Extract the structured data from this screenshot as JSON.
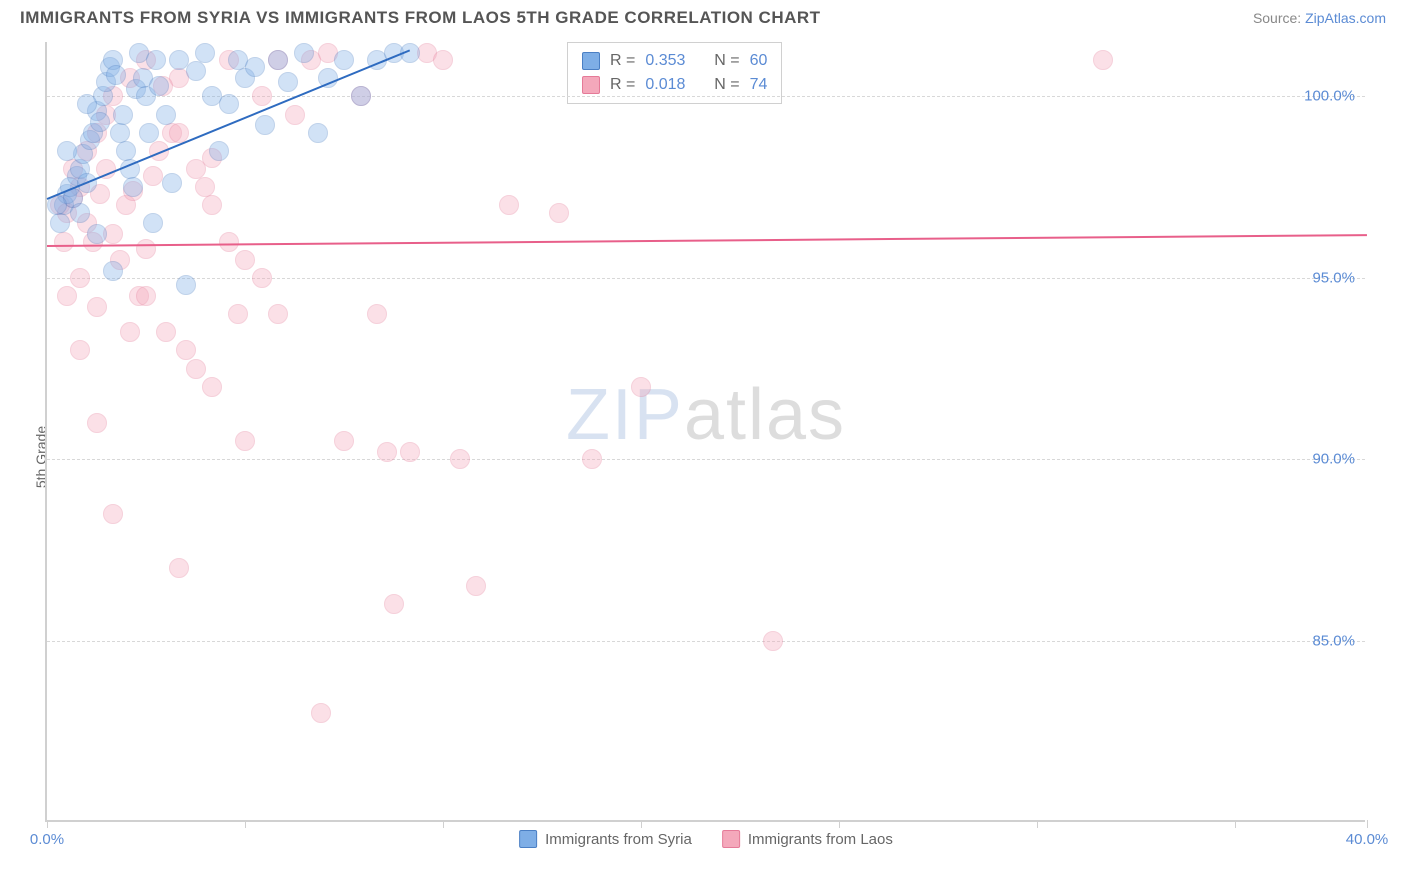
{
  "title": "IMMIGRANTS FROM SYRIA VS IMMIGRANTS FROM LAOS 5TH GRADE CORRELATION CHART",
  "source_prefix": "Source: ",
  "source_link": "ZipAtlas.com",
  "ylabel": "5th Grade",
  "watermark": {
    "part1": "ZIP",
    "part2": "atlas"
  },
  "chart": {
    "type": "scatter",
    "background_color": "#ffffff",
    "grid_color": "#d8d8d8",
    "axis_color": "#d0d0d0",
    "label_color": "#5b8bd4",
    "xlim": [
      0,
      40
    ],
    "ylim": [
      80,
      101.5
    ],
    "xticks": [
      0,
      6,
      12,
      18,
      24,
      30,
      36,
      40
    ],
    "xtick_labels": {
      "0": "0.0%",
      "40": "40.0%"
    },
    "yticks": [
      85,
      90,
      95,
      100
    ],
    "ytick_labels": {
      "85": "85.0%",
      "90": "90.0%",
      "95": "95.0%",
      "100": "100.0%"
    },
    "point_radius": 10,
    "point_opacity": 0.35,
    "series": [
      {
        "name": "Immigrants from Syria",
        "color_fill": "#7eaee6",
        "color_stroke": "#4a7fc4",
        "R": "0.353",
        "N": "60",
        "trend": {
          "x1": 0,
          "y1": 97.2,
          "x2": 11,
          "y2": 101.3,
          "color": "#2e6bc0"
        },
        "points": [
          [
            0.5,
            97.0
          ],
          [
            0.6,
            97.3
          ],
          [
            0.7,
            97.5
          ],
          [
            0.8,
            97.2
          ],
          [
            0.9,
            97.8
          ],
          [
            1.0,
            98.0
          ],
          [
            1.1,
            98.4
          ],
          [
            1.2,
            97.6
          ],
          [
            1.3,
            98.8
          ],
          [
            1.4,
            99.0
          ],
          [
            1.5,
            99.6
          ],
          [
            1.6,
            99.3
          ],
          [
            1.7,
            100.0
          ],
          [
            1.8,
            100.4
          ],
          [
            1.9,
            100.8
          ],
          [
            2.0,
            101.0
          ],
          [
            2.1,
            100.6
          ],
          [
            2.2,
            99.0
          ],
          [
            2.3,
            99.5
          ],
          [
            2.4,
            98.5
          ],
          [
            2.5,
            98.0
          ],
          [
            2.6,
            97.5
          ],
          [
            2.7,
            100.2
          ],
          [
            2.8,
            101.2
          ],
          [
            2.9,
            100.5
          ],
          [
            3.0,
            100.0
          ],
          [
            3.1,
            99.0
          ],
          [
            3.2,
            96.5
          ],
          [
            3.3,
            101.0
          ],
          [
            3.4,
            100.3
          ],
          [
            3.6,
            99.5
          ],
          [
            3.8,
            97.6
          ],
          [
            4.0,
            101.0
          ],
          [
            4.2,
            94.8
          ],
          [
            4.5,
            100.7
          ],
          [
            4.8,
            101.2
          ],
          [
            5.0,
            100.0
          ],
          [
            5.2,
            98.5
          ],
          [
            5.5,
            99.8
          ],
          [
            5.8,
            101.0
          ],
          [
            6.0,
            100.5
          ],
          [
            6.3,
            100.8
          ],
          [
            6.6,
            99.2
          ],
          [
            7.0,
            101.0
          ],
          [
            7.3,
            100.4
          ],
          [
            7.8,
            101.2
          ],
          [
            8.2,
            99.0
          ],
          [
            8.5,
            100.5
          ],
          [
            9.0,
            101.0
          ],
          [
            9.5,
            100.0
          ],
          [
            10.0,
            101.0
          ],
          [
            10.5,
            101.2
          ],
          [
            11.0,
            101.2
          ],
          [
            2.0,
            95.2
          ],
          [
            1.0,
            96.8
          ],
          [
            1.5,
            96.2
          ],
          [
            0.4,
            96.5
          ],
          [
            0.3,
            97.0
          ],
          [
            0.6,
            98.5
          ],
          [
            1.2,
            99.8
          ]
        ]
      },
      {
        "name": "Immigrants from Laos",
        "color_fill": "#f4a8bb",
        "color_stroke": "#e57a98",
        "R": "0.018",
        "N": "74",
        "trend": {
          "x1": 0,
          "y1": 95.9,
          "x2": 40,
          "y2": 96.2,
          "color": "#e85f8a"
        },
        "points": [
          [
            0.4,
            97.0
          ],
          [
            0.6,
            96.8
          ],
          [
            0.8,
            97.2
          ],
          [
            1.0,
            97.5
          ],
          [
            1.2,
            96.5
          ],
          [
            1.4,
            96.0
          ],
          [
            1.6,
            97.3
          ],
          [
            1.8,
            98.0
          ],
          [
            2.0,
            96.2
          ],
          [
            2.2,
            95.5
          ],
          [
            2.4,
            97.0
          ],
          [
            2.6,
            97.4
          ],
          [
            2.8,
            94.5
          ],
          [
            3.0,
            95.8
          ],
          [
            3.2,
            97.8
          ],
          [
            3.4,
            98.5
          ],
          [
            3.6,
            93.5
          ],
          [
            3.8,
            99.0
          ],
          [
            4.0,
            100.5
          ],
          [
            4.2,
            93.0
          ],
          [
            4.5,
            92.5
          ],
          [
            4.8,
            97.5
          ],
          [
            5.0,
            98.3
          ],
          [
            5.5,
            101.0
          ],
          [
            5.8,
            94.0
          ],
          [
            6.0,
            90.5
          ],
          [
            6.5,
            100.0
          ],
          [
            7.0,
            101.0
          ],
          [
            7.5,
            99.5
          ],
          [
            8.0,
            101.0
          ],
          [
            8.3,
            83.0
          ],
          [
            8.5,
            101.2
          ],
          [
            9.0,
            90.5
          ],
          [
            9.5,
            100.0
          ],
          [
            10.0,
            94.0
          ],
          [
            10.3,
            90.2
          ],
          [
            10.5,
            86.0
          ],
          [
            11.0,
            90.2
          ],
          [
            11.5,
            101.2
          ],
          [
            12.0,
            101.0
          ],
          [
            12.5,
            90.0
          ],
          [
            13.0,
            86.5
          ],
          [
            14.0,
            97.0
          ],
          [
            15.5,
            96.8
          ],
          [
            16.5,
            90.0
          ],
          [
            18.0,
            92.0
          ],
          [
            22.0,
            85.0
          ],
          [
            32.0,
            101.0
          ],
          [
            2.0,
            88.5
          ],
          [
            4.0,
            87.0
          ],
          [
            5.0,
            92.0
          ],
          [
            1.5,
            91.0
          ],
          [
            3.0,
            94.5
          ],
          [
            1.0,
            95.0
          ],
          [
            0.5,
            96.0
          ],
          [
            0.8,
            98.0
          ],
          [
            1.2,
            98.5
          ],
          [
            1.5,
            99.0
          ],
          [
            1.8,
            99.5
          ],
          [
            2.0,
            100.0
          ],
          [
            2.5,
            100.5
          ],
          [
            3.0,
            101.0
          ],
          [
            3.5,
            100.3
          ],
          [
            4.0,
            99.0
          ],
          [
            4.5,
            98.0
          ],
          [
            5.0,
            97.0
          ],
          [
            5.5,
            96.0
          ],
          [
            6.0,
            95.5
          ],
          [
            6.5,
            95.0
          ],
          [
            7.0,
            94.0
          ],
          [
            0.6,
            94.5
          ],
          [
            1.0,
            93.0
          ],
          [
            1.5,
            94.2
          ],
          [
            2.5,
            93.5
          ]
        ]
      }
    ]
  },
  "top_legend": {
    "r_label": "R =",
    "n_label": "N ="
  },
  "bottom_legend_labels": [
    "Immigrants from Syria",
    "Immigrants from Laos"
  ]
}
